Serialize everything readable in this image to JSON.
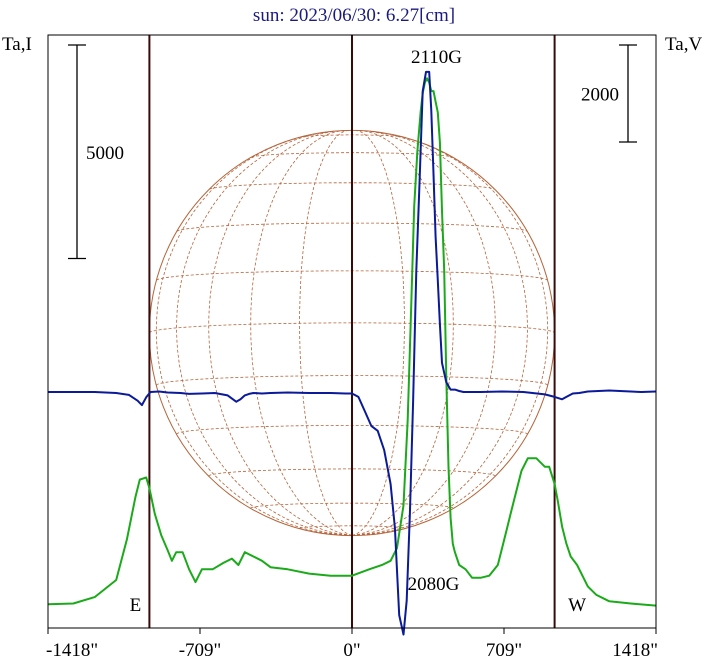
{
  "title": "sun: 2023/06/30: 6.27[cm]",
  "colors": {
    "background": "#ffffff",
    "frame": "#000000",
    "title": "#1a1a80",
    "vlines": "#3a0a0a",
    "disk": "#b5643a",
    "stokes_i": "#1aaa1a",
    "stokes_v": "#0a1a99"
  },
  "chart_data": {
    "type": "line",
    "title": "sun: 2023/06/30: 6.27[cm]",
    "xlabel": "",
    "ylabel_left": "Ta,I",
    "ylabel_right": "Ta,V",
    "xlim": [
      -1418,
      1418
    ],
    "x_ticks": [
      -1418,
      -709,
      0,
      709,
      1418
    ],
    "x_tick_labels": [
      "-1418\"",
      "-709\"",
      "0\"",
      "709\"",
      "1418\""
    ],
    "vertical_lines": [
      -945,
      0,
      945
    ],
    "solar_disk_radius_arcsec": 945,
    "limb_labels": [
      {
        "text": "E",
        "x": -1010
      },
      {
        "text": "W",
        "x": 1050
      }
    ],
    "scale_bars": [
      {
        "axis": "left",
        "label": "5000",
        "value": 5000
      },
      {
        "axis": "right",
        "label": "2000",
        "value": 2000
      }
    ],
    "annotations": [
      {
        "text": "2110G",
        "x": 380
      },
      {
        "text": "2080G",
        "x": 380
      }
    ],
    "grid": false,
    "series": [
      {
        "key": "I",
        "axis": "left",
        "x": [
          -1418,
          -1300,
          -1200,
          -1100,
          -1050,
          -1010,
          -990,
          -960,
          -945,
          -920,
          -890,
          -860,
          -840,
          -820,
          -790,
          -760,
          -730,
          -700,
          -650,
          -600,
          -560,
          -530,
          -500,
          -460,
          -420,
          -380,
          -300,
          -200,
          -100,
          0,
          80,
          140,
          180,
          210,
          240,
          260,
          275,
          290,
          305,
          320,
          330,
          340,
          350,
          360,
          370,
          380,
          390,
          400,
          410,
          420,
          430,
          440,
          450,
          460,
          470,
          480,
          500,
          530,
          560,
          600,
          640,
          680,
          700,
          720,
          740,
          760,
          790,
          820,
          860,
          900,
          920,
          945,
          960,
          980,
          1000,
          1020,
          1050,
          1080,
          1100,
          1140,
          1200,
          1300,
          1418
        ],
        "y": [
          180,
          200,
          350,
          750,
          1700,
          2700,
          3100,
          3150,
          2900,
          2300,
          1800,
          1450,
          1200,
          1400,
          1400,
          1000,
          700,
          1000,
          1000,
          1150,
          1250,
          1100,
          1400,
          1300,
          1200,
          1050,
          1000,
          900,
          850,
          850,
          1000,
          1100,
          1200,
          1500,
          2500,
          4500,
          7000,
          9500,
          10800,
          11700,
          12150,
          12400,
          12500,
          12400,
          12200,
          12200,
          11950,
          11700,
          11000,
          9400,
          8000,
          5500,
          3400,
          2200,
          1600,
          1400,
          1100,
          1000,
          800,
          800,
          850,
          1100,
          1500,
          1900,
          2300,
          2700,
          3300,
          3600,
          3600,
          3400,
          3400,
          3000,
          2600,
          2000,
          1600,
          1300,
          1100,
          800,
          600,
          400,
          250,
          200,
          150
        ]
      },
      {
        "key": "V",
        "axis": "right",
        "x": [
          -1418,
          -1300,
          -1200,
          -1100,
          -1040,
          -1000,
          -980,
          -960,
          -940,
          -900,
          -860,
          -800,
          -760,
          -700,
          -640,
          -580,
          -540,
          -520,
          -500,
          -480,
          -460,
          -420,
          -380,
          -300,
          -200,
          -100,
          -30,
          0,
          30,
          60,
          90,
          120,
          150,
          180,
          200,
          220,
          240,
          255,
          270,
          285,
          300,
          315,
          330,
          345,
          360,
          370,
          380,
          390,
          400,
          410,
          420,
          440,
          460,
          480,
          500,
          520,
          600,
          700,
          800,
          900,
          945,
          980,
          1000,
          1030,
          1060,
          1100,
          1150,
          1200,
          1250,
          1300,
          1350,
          1418
        ],
        "y": [
          0,
          0,
          0,
          -20,
          -60,
          -180,
          -270,
          -110,
          0,
          10,
          -10,
          -20,
          -40,
          -30,
          -20,
          -70,
          -200,
          -150,
          -70,
          -40,
          -20,
          -30,
          -20,
          -10,
          -20,
          -20,
          -30,
          -30,
          -100,
          -400,
          -700,
          -800,
          -1200,
          -1900,
          -2800,
          -4600,
          -5000,
          -4300,
          -2500,
          -200,
          2500,
          4300,
          6200,
          6600,
          6600,
          5800,
          4500,
          3200,
          2300,
          1400,
          600,
          200,
          50,
          50,
          20,
          0,
          0,
          10,
          0,
          -50,
          -100,
          -150,
          -100,
          -30,
          -20,
          10,
          20,
          30,
          20,
          10,
          0,
          10
        ]
      }
    ]
  }
}
